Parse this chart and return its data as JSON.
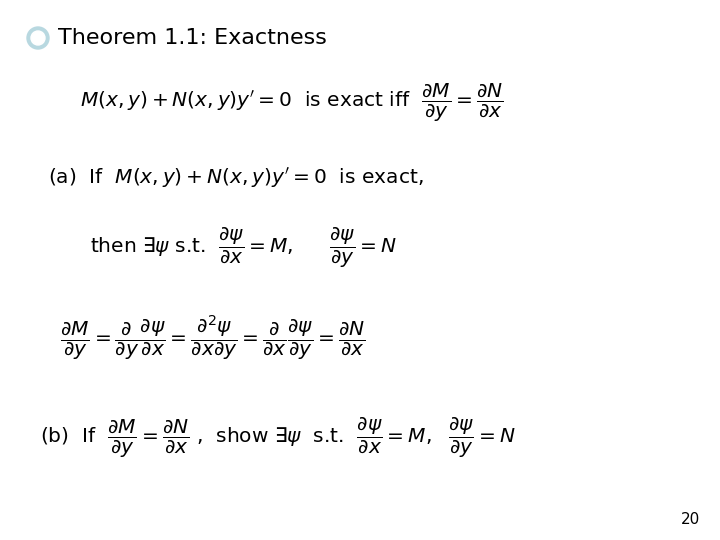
{
  "background_color": "#ffffff",
  "title_text": "Theorem 1.1: Exactness",
  "title_fontsize": 16,
  "bullet_color": "#b8d8e0",
  "line1_text": "$M(x,y)+N(x,y)y'=0$  is exact iff  $\\dfrac{\\partial M}{\\partial y}=\\dfrac{\\partial N}{\\partial x}$",
  "line1_fontsize": 14.5,
  "line2_text": "(a)  If  $M(x,y)+N(x,y)y'=0$  is exact,",
  "line2_fontsize": 14.5,
  "line3_text": "then $\\exists\\psi$ s.t.  $\\dfrac{\\partial\\psi}{\\partial x}=M,$  $\\quad\\dfrac{\\partial\\psi}{\\partial y}=N$",
  "line3_fontsize": 14.5,
  "line4_text": "$\\dfrac{\\partial M}{\\partial y}=\\dfrac{\\partial}{\\partial y}\\dfrac{\\partial\\psi}{\\partial x}=\\dfrac{\\partial^2\\psi}{\\partial x\\partial y}=\\dfrac{\\partial}{\\partial x}\\dfrac{\\partial\\psi}{\\partial y}=\\dfrac{\\partial N}{\\partial x}$",
  "line4_fontsize": 14.5,
  "line5_text": "(b)  If  $\\dfrac{\\partial M}{\\partial y}=\\dfrac{\\partial N}{\\partial x}$ ,  show $\\exists\\psi$  s.t.  $\\dfrac{\\partial\\psi}{\\partial x}=M,$  $\\dfrac{\\partial\\psi}{\\partial y}=N$",
  "line5_fontsize": 14.5,
  "page_num": "20",
  "page_fontsize": 11
}
